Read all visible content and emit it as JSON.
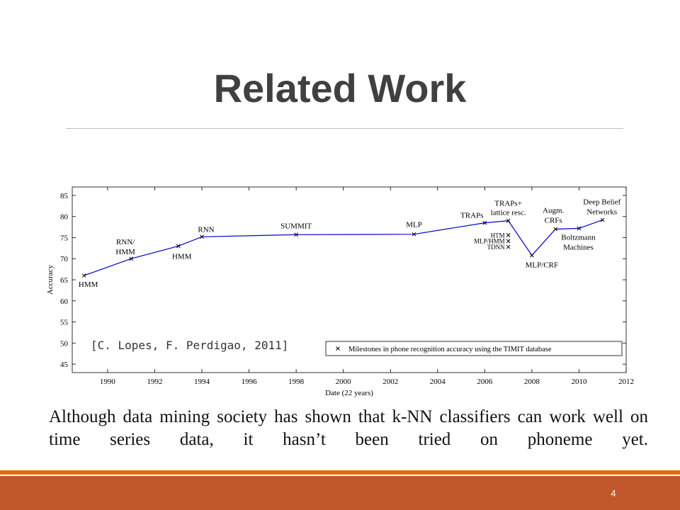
{
  "slide": {
    "title": "Related Work",
    "citation": "[C. Lopes, F. Perdigao, 2011]",
    "body": "Although data mining society has shown that k-NN classifiers can work well on time series data, it hasn’t been tried on phoneme yet.",
    "page_number": "4"
  },
  "colors": {
    "accent_band": "#c0582b",
    "accent_line": "#e36c09",
    "title": "#404040",
    "series": "#0000cc"
  },
  "chart_data": {
    "type": "line",
    "xlabel": "Date (22 years)",
    "ylabel": "Accuracy",
    "xlim": [
      1988.5,
      2012
    ],
    "ylim": [
      43,
      87
    ],
    "xticks": [
      1990,
      1992,
      1994,
      1996,
      1998,
      2000,
      2002,
      2004,
      2006,
      2008,
      2010,
      2012
    ],
    "yticks": [
      45,
      50,
      55,
      60,
      65,
      70,
      75,
      80,
      85
    ],
    "legend": {
      "label": "Milestones in phone recognition accuracy using the TIMIT database",
      "position": "lower-right"
    },
    "series": [
      {
        "values": [
          {
            "x": 1989,
            "y": 66,
            "label": "HMM"
          },
          {
            "x": 1991,
            "y": 70,
            "label": "RNN/ HMM"
          },
          {
            "x": 1993,
            "y": 73,
            "label": "HMM"
          },
          {
            "x": 1994,
            "y": 75.2,
            "label": "RNN"
          },
          {
            "x": 1998,
            "y": 75.7,
            "label": "SUMMIT"
          },
          {
            "x": 2003,
            "y": 75.8,
            "label": "MLP"
          },
          {
            "x": 2006,
            "y": 78.5,
            "label": "TRAPs"
          },
          {
            "x": 2007,
            "y": 79,
            "label": "TRAPs+ lattice resc."
          },
          {
            "x": 2008,
            "y": 70.8,
            "label": "MLP/CRF"
          },
          {
            "x": 2009,
            "y": 77,
            "label": "Augm. CRFs"
          },
          {
            "x": 2010,
            "y": 77.2,
            "label": "Boltzmann Machines"
          },
          {
            "x": 2011,
            "y": 79.2,
            "label": "Deep Belief Networks"
          }
        ]
      }
    ],
    "extra_points": [
      {
        "x": 2007,
        "y": 75.6,
        "label": "HTM"
      },
      {
        "x": 2007,
        "y": 74.2,
        "label": "MLP/HMM"
      },
      {
        "x": 2007,
        "y": 72.8,
        "label": "TDNN"
      }
    ]
  }
}
